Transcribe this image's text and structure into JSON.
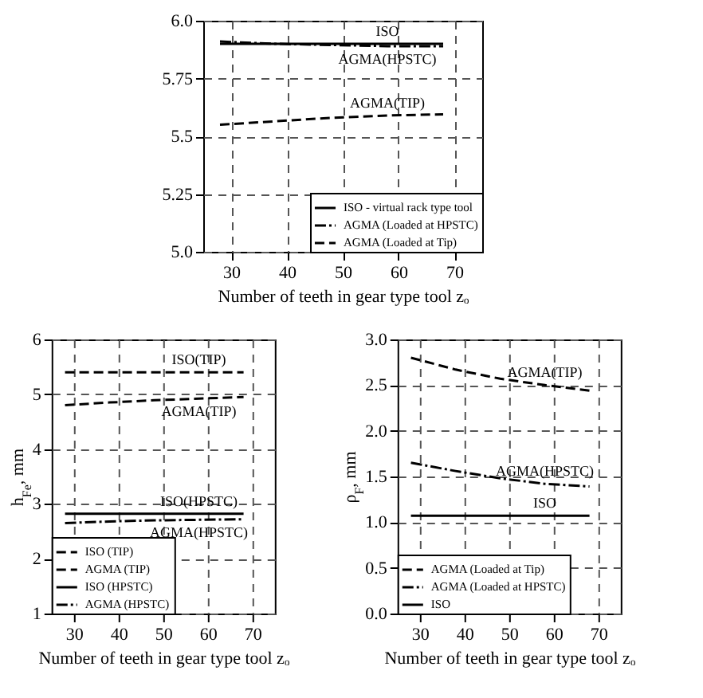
{
  "chart_data": [
    {
      "type": "line",
      "xlabel": "Number of teeth in gear type tool zₒ",
      "x": [
        28,
        38,
        48,
        58,
        68
      ],
      "xlim": [
        25,
        75
      ],
      "xticks": [
        30,
        40,
        50,
        60,
        70
      ],
      "ylim": [
        5,
        6
      ],
      "yticks": [
        {
          "value": 5,
          "label": "5.0"
        },
        5.25,
        5.5,
        5.75,
        {
          "value": 6,
          "label": "6.0"
        }
      ],
      "grid": true,
      "legend": "bottom right",
      "series": [
        {
          "name": "ISO - virtual rack type tool",
          "color": "#000000",
          "line_style": "solid",
          "values": [
            5.9,
            5.9,
            5.9,
            5.9,
            5.9
          ]
        },
        {
          "name": "AGMA (Loaded at HPSTC)",
          "color": "#000000",
          "line_style": "dotted",
          "values": [
            5.91,
            5.9,
            5.895,
            5.89,
            5.89
          ]
        },
        {
          "name": "AGMA (Loaded at Tip)",
          "color": "#000000",
          "line_style": "dashed",
          "values": [
            5.55,
            5.565,
            5.58,
            5.59,
            5.595
          ]
        }
      ],
      "annotations": [
        "ISO",
        "AGMA(HPSTC)",
        "AGMA(TIP)"
      ]
    },
    {
      "type": "line",
      "xlabel": "Number of teeth in gear type tool zₒ",
      "ylabel": "h$_{Fe}$, mm",
      "x": [
        28,
        38,
        48,
        58,
        68
      ],
      "xlim": [
        25,
        75
      ],
      "xticks": [
        30,
        40,
        50,
        60,
        70
      ],
      "ylim": [
        1,
        6
      ],
      "yticks": [
        1,
        2,
        3,
        4,
        5,
        6
      ],
      "grid": true,
      "legend": "bottom left",
      "series": [
        {
          "name": "ISO (TIP)",
          "color": "#000000",
          "line_style": "dashed",
          "values": [
            5.4,
            5.4,
            5.4,
            5.4,
            5.4
          ]
        },
        {
          "name": "AGMA (TIP)",
          "color": "#000000",
          "line_style": "dashed",
          "values": [
            4.8,
            4.85,
            4.89,
            4.92,
            4.95
          ]
        },
        {
          "name": "ISO (HPSTC)",
          "color": "#000000",
          "line_style": "solid",
          "values": [
            2.82,
            2.82,
            2.82,
            2.82,
            2.82
          ]
        },
        {
          "name": "AGMA (HPSTC)",
          "color": "#000000",
          "line_style": "dotted",
          "values": [
            2.65,
            2.68,
            2.7,
            2.71,
            2.72
          ]
        }
      ],
      "annotations": [
        "ISO(TIP)",
        "AGMA(TIP)",
        "ISO(HPSTC)",
        "AGMA(HPSTC)"
      ]
    },
    {
      "type": "line",
      "xlabel": "Number of teeth in gear type tool zₒ",
      "ylabel": "ρ$_{F}$, mm",
      "x": [
        28,
        38,
        48,
        58,
        68
      ],
      "xlim": [
        25,
        75
      ],
      "xticks": [
        30,
        40,
        50,
        60,
        70
      ],
      "ylim": [
        0,
        3
      ],
      "yticks": [
        {
          "value": 0,
          "label": "0.0"
        },
        0.5,
        {
          "value": 1,
          "label": "1.0"
        },
        1.5,
        {
          "value": 2,
          "label": "2.0"
        },
        2.5,
        {
          "value": 3,
          "label": "3.0"
        }
      ],
      "grid": true,
      "legend": "bottom left",
      "series": [
        {
          "name": "AGMA (Loaded at Tip)",
          "color": "#000000",
          "line_style": "dashed",
          "values": [
            2.8,
            2.67,
            2.57,
            2.5,
            2.44
          ]
        },
        {
          "name": "AGMA (Loaded at HPSTC)",
          "color": "#000000",
          "line_style": "dotted",
          "values": [
            1.65,
            1.56,
            1.48,
            1.42,
            1.39
          ]
        },
        {
          "name": "ISO",
          "color": "#000000",
          "line_style": "solid",
          "values": [
            1.07,
            1.07,
            1.07,
            1.07,
            1.07
          ]
        }
      ],
      "annotations": [
        "AGMA(TIP)",
        "AGMA(HPSTC)",
        "ISO"
      ]
    }
  ]
}
